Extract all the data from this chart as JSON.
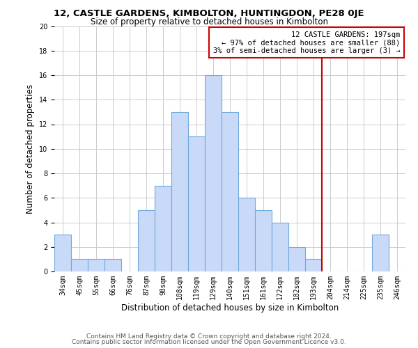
{
  "title": "12, CASTLE GARDENS, KIMBOLTON, HUNTINGDON, PE28 0JE",
  "subtitle": "Size of property relative to detached houses in Kimbolton",
  "xlabel": "Distribution of detached houses by size in Kimbolton",
  "ylabel": "Number of detached properties",
  "bin_labels": [
    "34sqm",
    "45sqm",
    "55sqm",
    "66sqm",
    "76sqm",
    "87sqm",
    "98sqm",
    "108sqm",
    "119sqm",
    "129sqm",
    "140sqm",
    "151sqm",
    "161sqm",
    "172sqm",
    "182sqm",
    "193sqm",
    "204sqm",
    "214sqm",
    "225sqm",
    "235sqm",
    "246sqm"
  ],
  "bar_heights": [
    3,
    1,
    1,
    1,
    0,
    5,
    7,
    13,
    11,
    16,
    13,
    6,
    5,
    4,
    2,
    1,
    0,
    0,
    0,
    3,
    0
  ],
  "bar_color": "#c9daf8",
  "bar_edge_color": "#6fa8dc",
  "ylim": [
    0,
    20
  ],
  "yticks": [
    0,
    2,
    4,
    6,
    8,
    10,
    12,
    14,
    16,
    18,
    20
  ],
  "vline_x": 15.5,
  "vline_color": "#cc0000",
  "annotation_text": "12 CASTLE GARDENS: 197sqm\n← 97% of detached houses are smaller (88)\n3% of semi-detached houses are larger (3) →",
  "annotation_box_color": "#cc0000",
  "footer_line1": "Contains HM Land Registry data © Crown copyright and database right 2024.",
  "footer_line2": "Contains public sector information licensed under the Open Government Licence v3.0.",
  "title_fontsize": 9.5,
  "subtitle_fontsize": 8.5,
  "axis_label_fontsize": 8.5,
  "tick_fontsize": 7,
  "annotation_fontsize": 7.5,
  "footer_fontsize": 6.5,
  "background_color": "#ffffff",
  "grid_color": "#cccccc"
}
